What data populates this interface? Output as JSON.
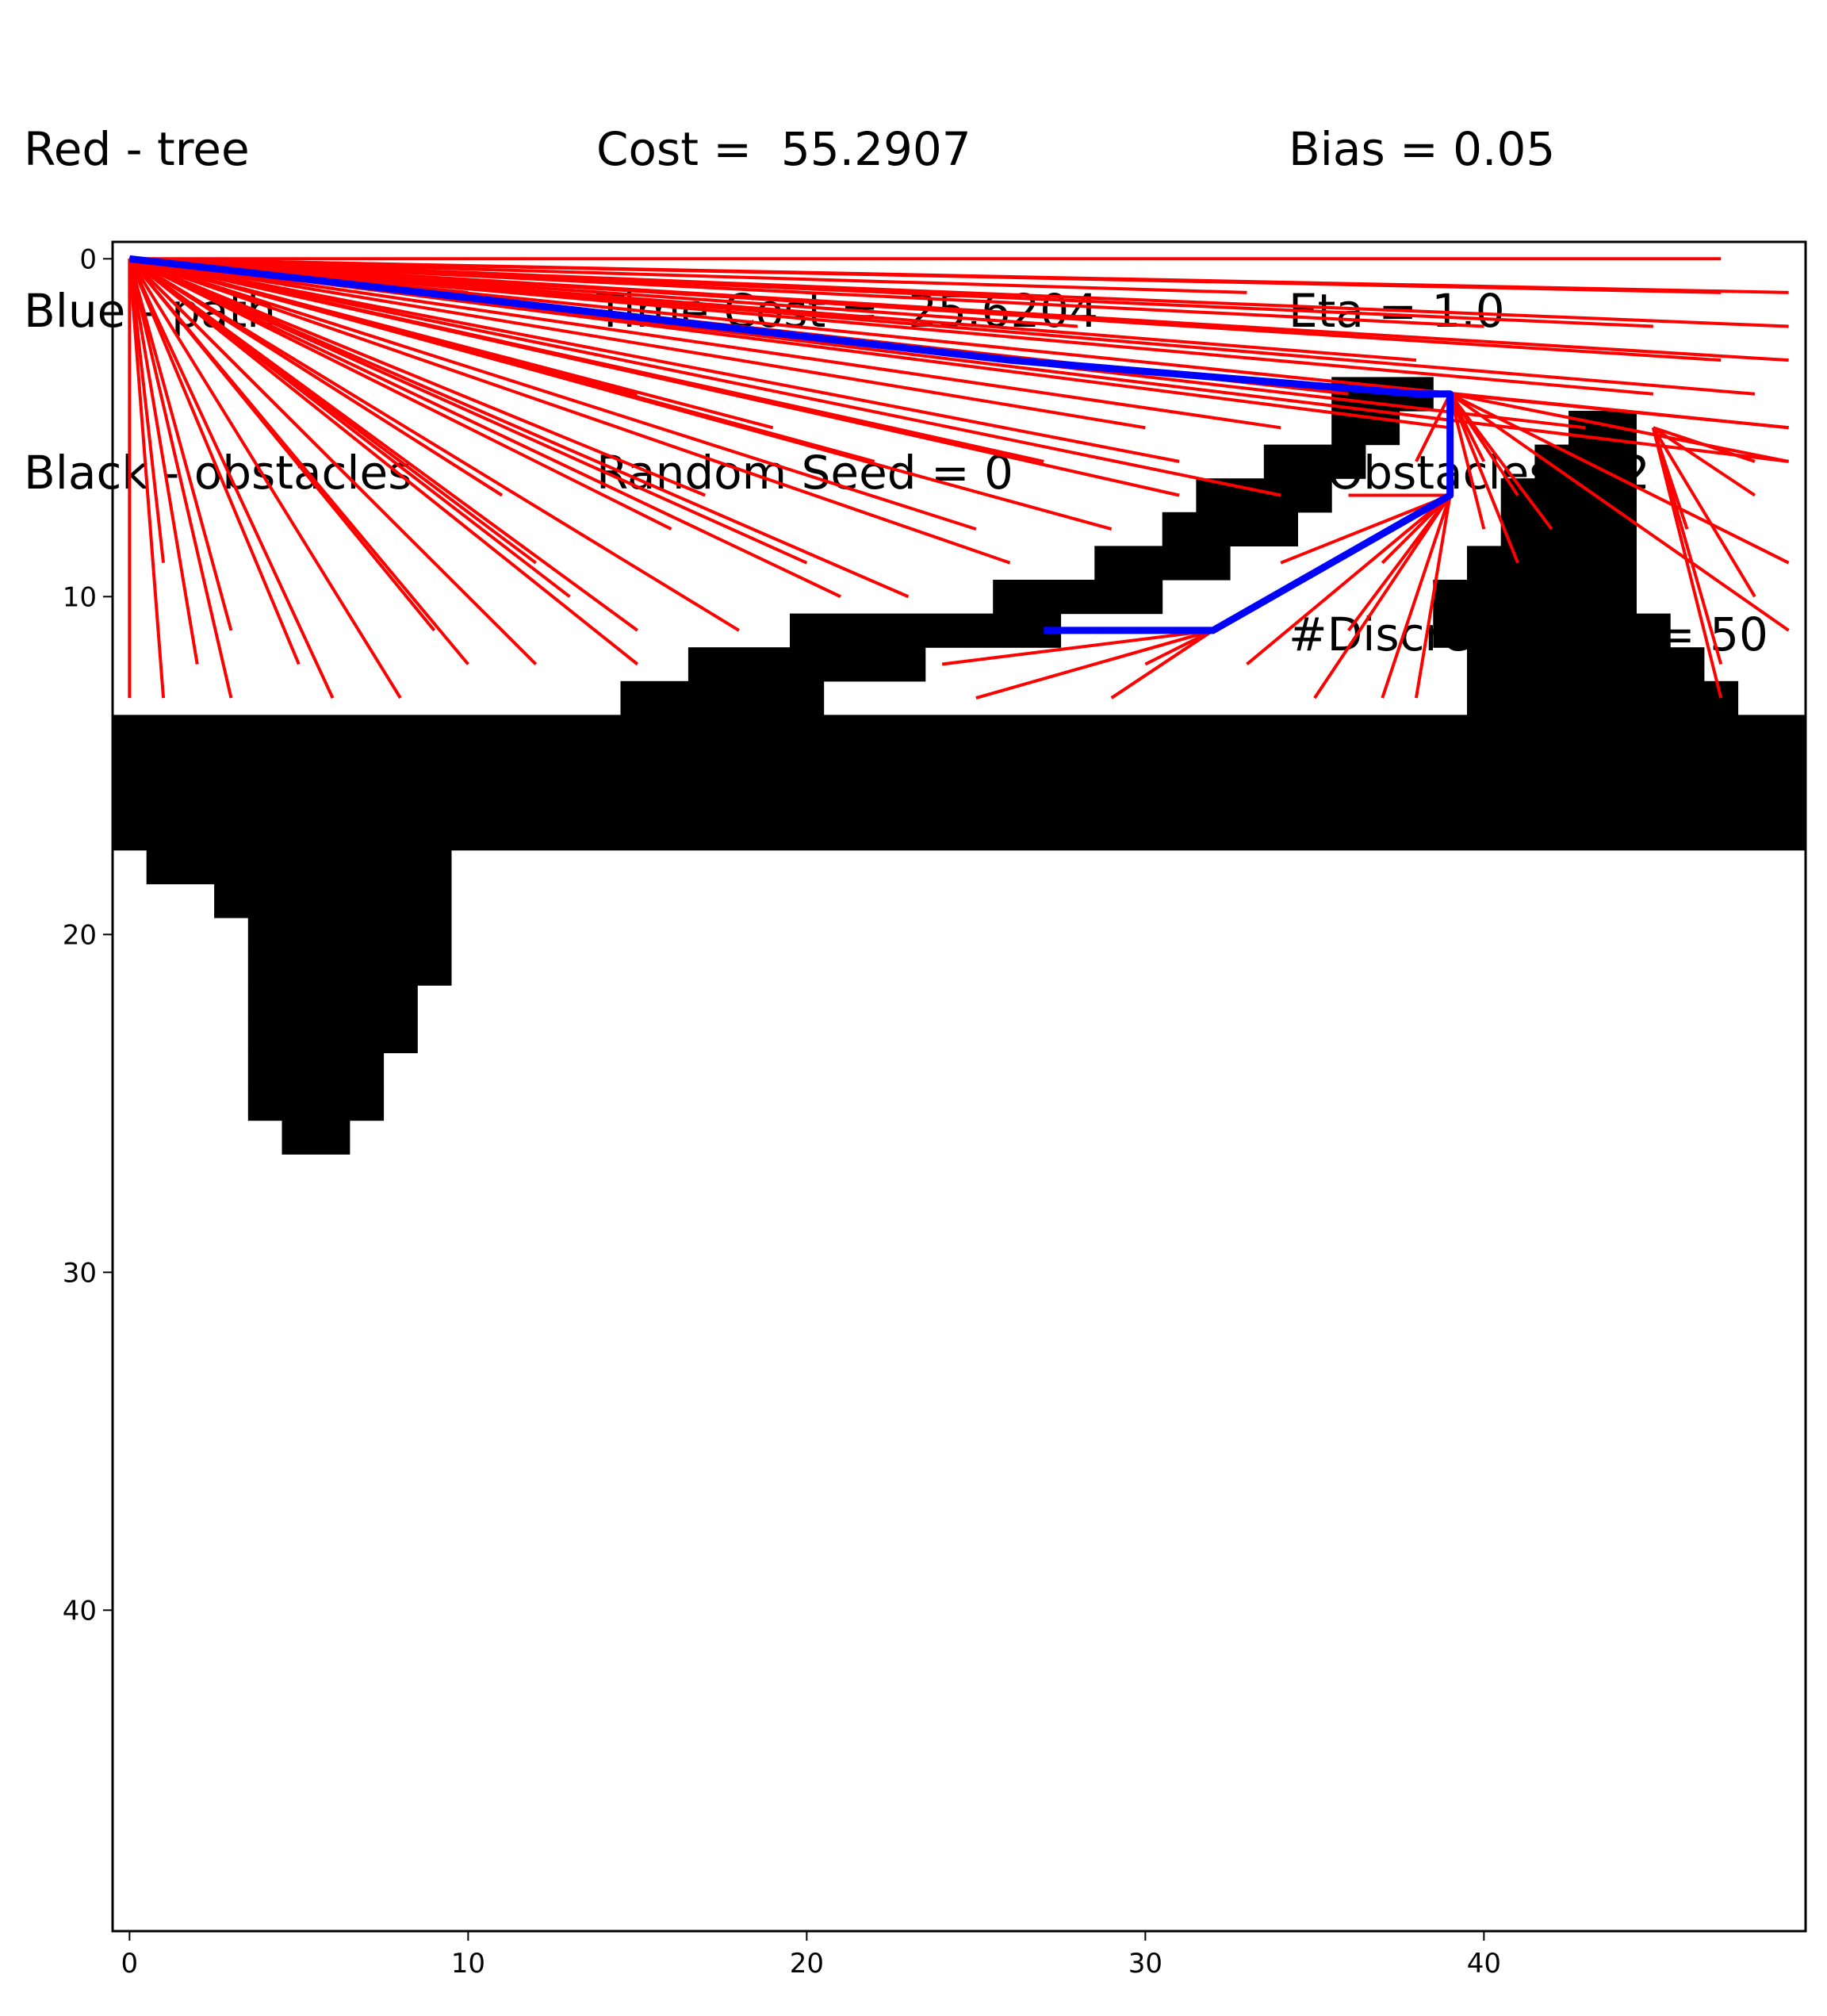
{
  "header": {
    "left": [
      "Red - tree",
      "Blue - path",
      "Black - obstacles"
    ],
    "middle": [
      "Cost =  55.2907",
      "Time Cost =  25.6204",
      "Random Seed = 0"
    ],
    "right": [
      "Bias = 0.05",
      "Eta = 1.0",
      "#Obstacles = 2",
      "#Discretization = 50"
    ]
  },
  "colors": {
    "tree": "#ff0000",
    "path": "#0000ff",
    "obstacle": "#000000"
  },
  "chart_data": {
    "type": "scatter",
    "title": "",
    "xlabel": "",
    "ylabel": "",
    "xlim": [
      -0.5,
      49.5
    ],
    "ylim": [
      49.5,
      -0.5
    ],
    "y_inverted": true,
    "xticks": [
      "0",
      "10",
      "20",
      "30",
      "40"
    ],
    "yticks": [
      "0",
      "10",
      "20",
      "30",
      "40"
    ],
    "grid": false,
    "obstacles": {
      "description": "black grid cells, listed as rows of [row, col_start, col_end] inclusive",
      "cells": [
        [
          4,
          36,
          38
        ],
        [
          5,
          36,
          36
        ],
        [
          5,
          37,
          37
        ],
        [
          6,
          34,
          36
        ],
        [
          7,
          32,
          35
        ],
        [
          8,
          31,
          34
        ],
        [
          9,
          29,
          32
        ],
        [
          10,
          26,
          30
        ],
        [
          11,
          20,
          27
        ],
        [
          12,
          17,
          23
        ],
        [
          13,
          15,
          20
        ],
        [
          14,
          15,
          20
        ],
        [
          11,
          39,
          40
        ],
        [
          10,
          39,
          39
        ],
        [
          6,
          42,
          44
        ],
        [
          5,
          43,
          44
        ],
        [
          7,
          41,
          44
        ],
        [
          8,
          41,
          44
        ],
        [
          9,
          40,
          44
        ],
        [
          10,
          40,
          44
        ],
        [
          11,
          40,
          45
        ],
        [
          12,
          40,
          46
        ],
        [
          13,
          40,
          47
        ],
        [
          14,
          0,
          49
        ],
        [
          15,
          0,
          49
        ],
        [
          16,
          0,
          49
        ],
        [
          17,
          0,
          49
        ],
        [
          18,
          1,
          9
        ],
        [
          19,
          3,
          9
        ],
        [
          20,
          4,
          9
        ],
        [
          21,
          4,
          9
        ],
        [
          22,
          4,
          8
        ],
        [
          23,
          4,
          8
        ],
        [
          24,
          4,
          7
        ],
        [
          25,
          4,
          7
        ],
        [
          26,
          5,
          6
        ]
      ]
    },
    "path": [
      [
        0,
        0
      ],
      [
        26,
        3
      ],
      [
        38,
        4
      ],
      [
        39,
        4
      ],
      [
        39,
        7
      ],
      [
        32,
        11
      ],
      [
        27,
        11
      ]
    ],
    "tree_edges": [
      [
        [
          0,
          0
        ],
        [
          47,
          0
        ]
      ],
      [
        [
          0,
          0
        ],
        [
          10,
          1
        ]
      ],
      [
        [
          0,
          0
        ],
        [
          49,
          1
        ]
      ],
      [
        [
          0,
          0
        ],
        [
          47,
          1
        ]
      ],
      [
        [
          0,
          0
        ],
        [
          49,
          2
        ]
      ],
      [
        [
          0,
          0
        ],
        [
          49,
          3
        ]
      ],
      [
        [
          0,
          0
        ],
        [
          47,
          3
        ]
      ],
      [
        [
          0,
          0
        ],
        [
          45,
          2
        ]
      ],
      [
        [
          0,
          0
        ],
        [
          48,
          4
        ]
      ],
      [
        [
          0,
          0
        ],
        [
          49,
          5
        ]
      ],
      [
        [
          0,
          0
        ],
        [
          49,
          6
        ]
      ],
      [
        [
          0,
          0
        ],
        [
          45,
          4
        ]
      ],
      [
        [
          0,
          0
        ],
        [
          43,
          5
        ]
      ],
      [
        [
          0,
          0
        ],
        [
          39,
          5
        ]
      ],
      [
        [
          0,
          0
        ],
        [
          34,
          5
        ]
      ],
      [
        [
          0,
          0
        ],
        [
          30,
          5
        ]
      ],
      [
        [
          0,
          0
        ],
        [
          36,
          4
        ]
      ],
      [
        [
          0,
          0
        ],
        [
          31,
          6
        ]
      ],
      [
        [
          0,
          0
        ],
        [
          27,
          6
        ]
      ],
      [
        [
          0,
          0
        ],
        [
          22,
          6
        ]
      ],
      [
        [
          0,
          0
        ],
        [
          34,
          7
        ]
      ],
      [
        [
          0,
          0
        ],
        [
          31,
          7
        ]
      ],
      [
        [
          0,
          0
        ],
        [
          29,
          8
        ]
      ],
      [
        [
          0,
          0
        ],
        [
          26,
          9
        ]
      ],
      [
        [
          0,
          0
        ],
        [
          25,
          8
        ]
      ],
      [
        [
          0,
          0
        ],
        [
          20,
          9
        ]
      ],
      [
        [
          0,
          0
        ],
        [
          23,
          10
        ]
      ],
      [
        [
          0,
          0
        ],
        [
          21,
          10
        ]
      ],
      [
        [
          0,
          0
        ],
        [
          18,
          11
        ]
      ],
      [
        [
          0,
          0
        ],
        [
          15,
          11
        ]
      ],
      [
        [
          0,
          0
        ],
        [
          13,
          10
        ]
      ],
      [
        [
          0,
          0
        ],
        [
          15,
          12
        ]
      ],
      [
        [
          0,
          0
        ],
        [
          12,
          12
        ]
      ],
      [
        [
          0,
          0
        ],
        [
          10,
          12
        ]
      ],
      [
        [
          0,
          0
        ],
        [
          8,
          13
        ]
      ],
      [
        [
          0,
          0
        ],
        [
          6,
          13
        ]
      ],
      [
        [
          0,
          0
        ],
        [
          5,
          12
        ]
      ],
      [
        [
          0,
          0
        ],
        [
          3,
          13
        ]
      ],
      [
        [
          0,
          0
        ],
        [
          2,
          12
        ]
      ],
      [
        [
          0,
          0
        ],
        [
          1,
          13
        ]
      ],
      [
        [
          0,
          0
        ],
        [
          0,
          13
        ]
      ],
      [
        [
          0,
          0
        ],
        [
          3,
          11
        ]
      ],
      [
        [
          0,
          0
        ],
        [
          1,
          9
        ]
      ],
      [
        [
          0,
          0
        ],
        [
          7,
          7
        ]
      ],
      [
        [
          0,
          0
        ],
        [
          11,
          7
        ]
      ],
      [
        [
          0,
          0
        ],
        [
          17,
          7
        ]
      ],
      [
        [
          0,
          0
        ],
        [
          19,
          5
        ]
      ],
      [
        [
          0,
          0
        ],
        [
          15,
          4
        ]
      ],
      [
        [
          0,
          0
        ],
        [
          16,
          8
        ]
      ],
      [
        [
          0,
          0
        ],
        [
          12,
          9
        ]
      ],
      [
        [
          0,
          0
        ],
        [
          9,
          11
        ]
      ],
      [
        [
          0,
          0
        ],
        [
          28,
          2
        ]
      ],
      [
        [
          0,
          0
        ],
        [
          38,
          3
        ]
      ],
      [
        [
          0,
          0
        ],
        [
          23,
          1
        ]
      ],
      [
        [
          0,
          0
        ],
        [
          33,
          1
        ]
      ],
      [
        [
          0,
          0
        ],
        [
          40,
          2
        ]
      ],
      [
        [
          39,
          4
        ],
        [
          49,
          5
        ]
      ],
      [
        [
          39,
          4
        ],
        [
          49,
          6
        ]
      ],
      [
        [
          39,
          4
        ],
        [
          49,
          9
        ]
      ],
      [
        [
          39,
          4
        ],
        [
          49,
          11
        ]
      ],
      [
        [
          39,
          4
        ],
        [
          41,
          7
        ]
      ],
      [
        [
          39,
          4
        ],
        [
          38,
          6
        ]
      ],
      [
        [
          39,
          4
        ],
        [
          40,
          8
        ]
      ],
      [
        [
          39,
          4
        ],
        [
          41,
          9
        ]
      ],
      [
        [
          45,
          5
        ],
        [
          48,
          7
        ]
      ],
      [
        [
          45,
          5
        ],
        [
          48,
          10
        ]
      ],
      [
        [
          45,
          5
        ],
        [
          47,
          12
        ]
      ],
      [
        [
          45,
          5
        ],
        [
          47,
          13
        ]
      ],
      [
        [
          45,
          5
        ],
        [
          46,
          8
        ]
      ],
      [
        [
          45,
          5
        ],
        [
          48,
          6
        ]
      ],
      [
        [
          39,
          7
        ],
        [
          37,
          13
        ]
      ],
      [
        [
          39,
          7
        ],
        [
          35,
          13
        ]
      ],
      [
        [
          39,
          7
        ],
        [
          33,
          12
        ]
      ],
      [
        [
          39,
          7
        ],
        [
          36,
          11
        ]
      ],
      [
        [
          39,
          7
        ],
        [
          34,
          9
        ]
      ],
      [
        [
          39,
          7
        ],
        [
          37,
          9
        ]
      ],
      [
        [
          39,
          7
        ],
        [
          36,
          7
        ]
      ],
      [
        [
          39,
          7
        ],
        [
          38,
          13
        ]
      ],
      [
        [
          32,
          11
        ],
        [
          24,
          12
        ]
      ],
      [
        [
          32,
          11
        ],
        [
          25,
          13
        ]
      ],
      [
        [
          32,
          11
        ],
        [
          29,
          13
        ]
      ],
      [
        [
          32,
          11
        ],
        [
          30,
          12
        ]
      ],
      [
        [
          39,
          4
        ],
        [
          40,
          6
        ]
      ],
      [
        [
          39,
          4
        ],
        [
          42,
          8
        ]
      ]
    ]
  }
}
